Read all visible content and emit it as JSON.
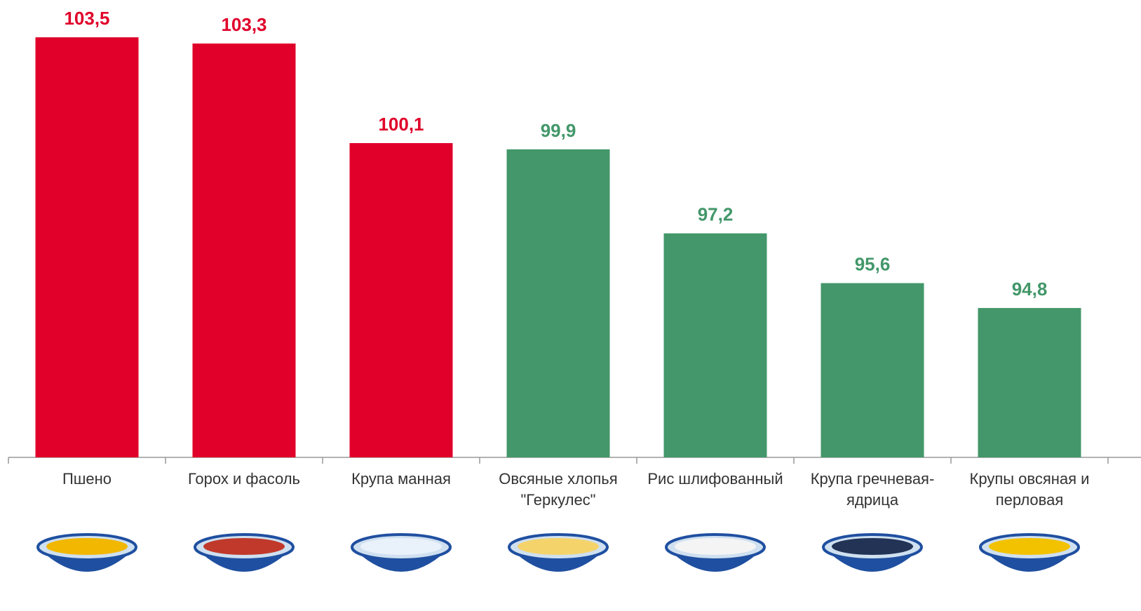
{
  "chart_data": {
    "type": "bar",
    "categories": [
      "Пшено",
      "Горох и фасоль",
      "Крупа манная",
      "Овсяные хлопья \"Геркулес\"",
      "Рис шлифованный",
      "Крупа гречневая-ядрица",
      "Крупы овсяная и перловая"
    ],
    "values": [
      103.5,
      103.3,
      100.1,
      99.9,
      97.2,
      95.6,
      94.8
    ],
    "value_labels": [
      "103,5",
      "103,3",
      "100,1",
      "99,9",
      "97,2",
      "95,6",
      "94,8"
    ],
    "colors": [
      "#e0002a",
      "#e0002a",
      "#e0002a",
      "#43976a",
      "#43976a",
      "#43976a",
      "#43976a"
    ],
    "ylim": [
      90,
      104
    ]
  }
}
